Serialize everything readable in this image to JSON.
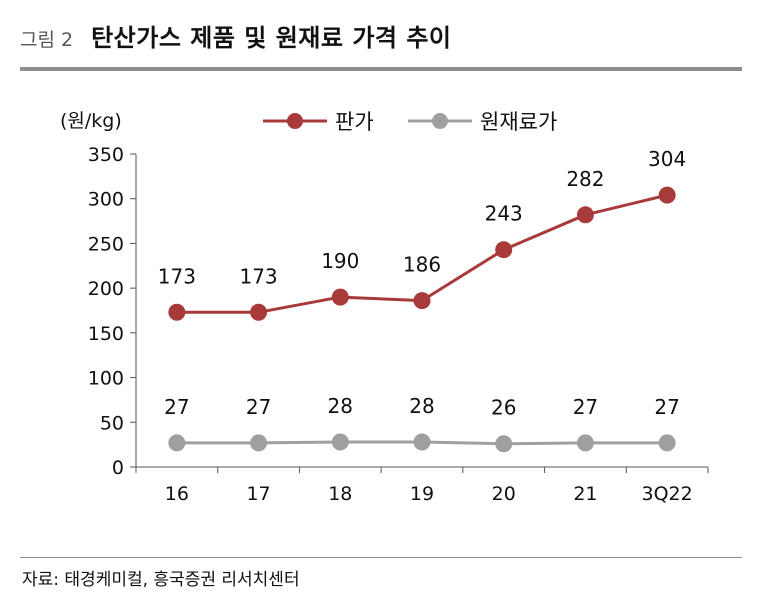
{
  "figure": {
    "label": "그림 2",
    "title": "탄산가스 제품 및 원재료 가격 추이",
    "source": "자료: 태경케미컬, 흥국증권 리서치센터"
  },
  "chart_data": {
    "type": "line",
    "categories": [
      "16",
      "17",
      "18",
      "19",
      "20",
      "21",
      "3Q22"
    ],
    "series": [
      {
        "name": "판가",
        "values": [
          173,
          173,
          190,
          186,
          243,
          282,
          304
        ],
        "color": "#a83a3a"
      },
      {
        "name": "원재료가",
        "values": [
          27,
          27,
          28,
          28,
          26,
          27,
          27
        ],
        "color": "#9f9f9f"
      }
    ],
    "ylabel": "(원/kg)",
    "xlabel": "",
    "ylim": [
      0,
      350
    ],
    "yticks": [
      0,
      50,
      100,
      150,
      200,
      250,
      300,
      350
    ],
    "grid": false,
    "legend": "top-center"
  }
}
